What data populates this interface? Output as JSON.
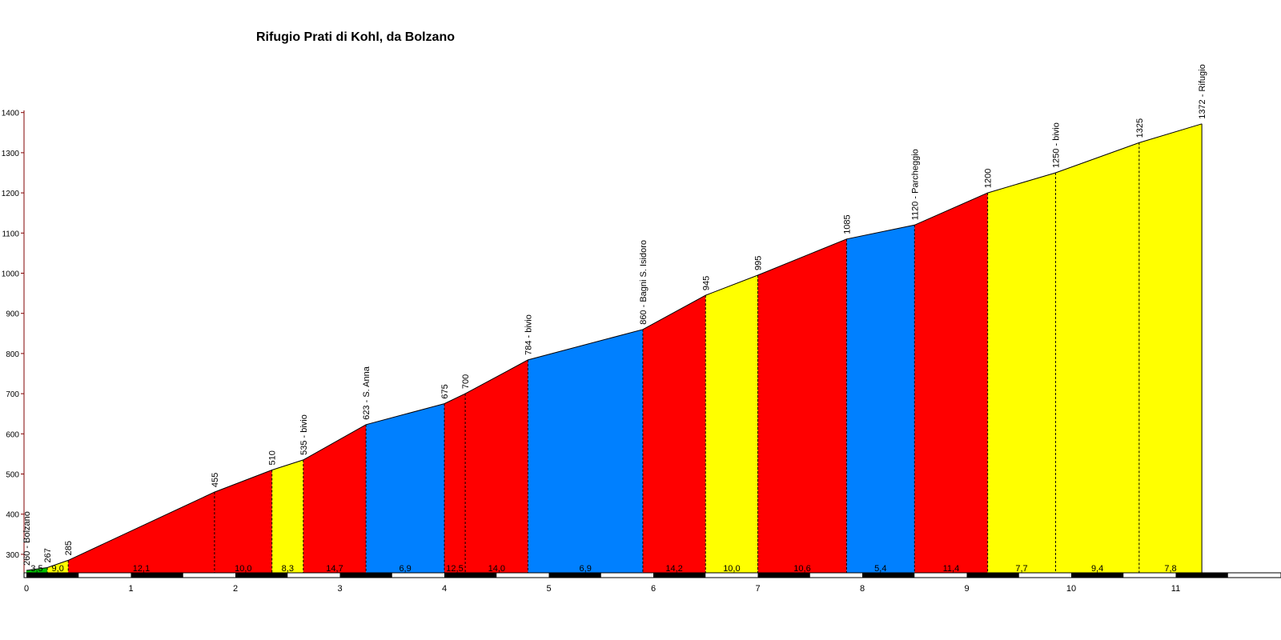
{
  "chart_data": {
    "type": "area",
    "title": "Rifugio Prati di Kohl, da Bolzano",
    "xlabel": "",
    "ylabel": "",
    "xlim": [
      0,
      11.5
    ],
    "ylim": [
      250,
      1400
    ],
    "yticks": [
      300,
      400,
      500,
      600,
      700,
      800,
      900,
      1000,
      1100,
      1200,
      1300,
      1400
    ],
    "xticks": [
      0,
      1,
      2,
      3,
      4,
      5,
      6,
      7,
      8,
      9,
      10,
      11
    ],
    "grid": false,
    "legend": "none",
    "points": [
      {
        "x": 0.0,
        "y": 260,
        "label": "260 - Bolzano"
      },
      {
        "x": 0.2,
        "y": 267,
        "label": "267"
      },
      {
        "x": 0.4,
        "y": 285,
        "label": "285"
      },
      {
        "x": 1.8,
        "y": 455,
        "label": "455"
      },
      {
        "x": 2.35,
        "y": 510,
        "label": "510"
      },
      {
        "x": 2.65,
        "y": 535,
        "label": "535 - bivio"
      },
      {
        "x": 3.25,
        "y": 623,
        "label": "623 - S. Anna"
      },
      {
        "x": 4.0,
        "y": 675,
        "label": "675"
      },
      {
        "x": 4.2,
        "y": 700,
        "label": "700"
      },
      {
        "x": 4.8,
        "y": 784,
        "label": "784 - bivio"
      },
      {
        "x": 5.9,
        "y": 860,
        "label": "860 - Bagni S. Isidoro"
      },
      {
        "x": 6.5,
        "y": 945,
        "label": "945"
      },
      {
        "x": 7.0,
        "y": 995,
        "label": "995"
      },
      {
        "x": 7.85,
        "y": 1085,
        "label": "1085"
      },
      {
        "x": 8.5,
        "y": 1120,
        "label": "1120 - Parcheggio"
      },
      {
        "x": 9.2,
        "y": 1200,
        "label": "1200"
      },
      {
        "x": 9.85,
        "y": 1250,
        "label": "1250 - bivio"
      },
      {
        "x": 10.65,
        "y": 1325,
        "label": "1325"
      },
      {
        "x": 11.25,
        "y": 1372,
        "label": "1372 - Rifugio"
      }
    ],
    "segments": [
      {
        "from": 0.0,
        "to": 0.2,
        "gradient": "3,5",
        "color": "#00c000"
      },
      {
        "from": 0.2,
        "to": 0.4,
        "gradient": "9,0",
        "color": "#ffff00"
      },
      {
        "from": 0.4,
        "to": 1.8,
        "gradient": "12,1",
        "color": "#ff0000"
      },
      {
        "from": 1.8,
        "to": 2.35,
        "gradient": "10,0",
        "color": "#ff0000"
      },
      {
        "from": 2.35,
        "to": 2.65,
        "gradient": "8,3",
        "color": "#ffff00"
      },
      {
        "from": 2.65,
        "to": 3.25,
        "gradient": "14,7",
        "color": "#ff0000"
      },
      {
        "from": 3.25,
        "to": 4.0,
        "gradient": "6,9",
        "color": "#0080ff"
      },
      {
        "from": 4.0,
        "to": 4.2,
        "gradient": "12,5",
        "color": "#ff0000"
      },
      {
        "from": 4.2,
        "to": 4.8,
        "gradient": "14,0",
        "color": "#ff0000"
      },
      {
        "from": 4.8,
        "to": 5.9,
        "gradient": "6,9",
        "color": "#0080ff"
      },
      {
        "from": 5.9,
        "to": 6.5,
        "gradient": "14,2",
        "color": "#ff0000"
      },
      {
        "from": 6.5,
        "to": 7.0,
        "gradient": "10,0",
        "color": "#ffff00"
      },
      {
        "from": 7.0,
        "to": 7.85,
        "gradient": "10,6",
        "color": "#ff0000"
      },
      {
        "from": 7.85,
        "to": 8.5,
        "gradient": "5,4",
        "color": "#0080ff"
      },
      {
        "from": 8.5,
        "to": 9.2,
        "gradient": "11,4",
        "color": "#ff0000"
      },
      {
        "from": 9.2,
        "to": 9.85,
        "gradient": "7,7",
        "color": "#ffff00"
      },
      {
        "from": 9.85,
        "to": 10.65,
        "gradient": "9,4",
        "color": "#ffff00"
      },
      {
        "from": 10.65,
        "to": 11.25,
        "gradient": "7,8",
        "color": "#ffff00"
      }
    ],
    "axis_color": "#800000"
  }
}
